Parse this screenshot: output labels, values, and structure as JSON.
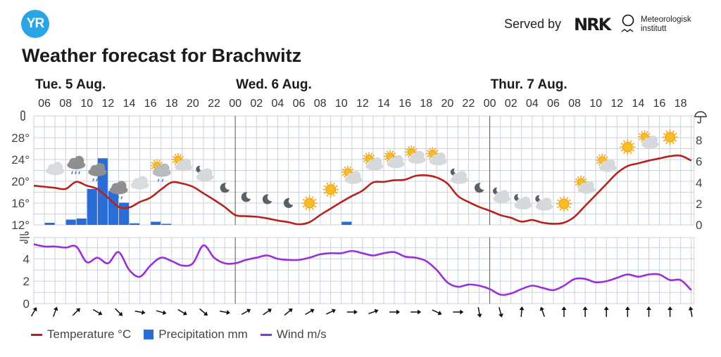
{
  "header": {
    "logo_text": "YR",
    "served_by": "Served by",
    "nrk_logo": "NRK",
    "met_line1": "Meteorologisk",
    "met_line2": "institutt",
    "title": "Weather forecast for Brachwitz"
  },
  "days": [
    {
      "label": "Tue. 5 Aug.",
      "start_hour": 5
    },
    {
      "label": "Wed. 6 Aug.",
      "start_hour": 24
    },
    {
      "label": "Thur. 7 Aug.",
      "start_hour": 48
    }
  ],
  "hour_labels": [
    "06",
    "08",
    "10",
    "12",
    "14",
    "16",
    "18",
    "20",
    "22",
    "00",
    "02",
    "04",
    "06",
    "08",
    "10",
    "12",
    "14",
    "16",
    "18",
    "20",
    "22",
    "00",
    "02",
    "04",
    "06",
    "08",
    "10",
    "12",
    "14",
    "16",
    "18"
  ],
  "legend": {
    "temperature": "Temperature °C",
    "precipitation": "Precipitation mm",
    "wind": "Wind m/s"
  },
  "colors": {
    "temperature": "#b5231c",
    "precipitation": "#2a6dd6",
    "wind": "#9b2fd6",
    "grid": "#c9d2dc",
    "midnight": "#555555",
    "brand": "#29a4e6"
  },
  "chart_data": {
    "type": "line",
    "x_unit": "hours since Tue 00:00",
    "x_range": [
      5,
      67
    ],
    "temperature": {
      "axis_labels": [
        "12°",
        "16°",
        "20°",
        "24°",
        "28°"
      ],
      "ylim": [
        12,
        32
      ],
      "values": [
        19.2,
        19.0,
        18.8,
        18.6,
        19.9,
        19.2,
        18.6,
        17.0,
        15.3,
        15.2,
        16.2,
        17.0,
        18.5,
        19.8,
        19.6,
        19.0,
        17.8,
        16.6,
        15.3,
        13.8,
        13.6,
        13.5,
        13.2,
        12.8,
        12.5,
        12.1,
        12.5,
        13.8,
        15.0,
        16.2,
        17.3,
        18.3,
        19.8,
        19.9,
        20.2,
        20.3,
        21.0,
        21.1,
        20.7,
        19.6,
        17.3,
        16.2,
        15.3,
        14.6,
        13.8,
        13.3,
        12.6,
        12.9,
        12.4,
        12.2,
        12.4,
        13.5,
        15.5,
        17.5,
        19.5,
        21.5,
        22.8,
        23.3,
        23.8,
        24.2,
        24.6,
        24.7,
        23.8
      ]
    },
    "precipitation": {
      "axis_labels": [
        "0",
        "2",
        "4",
        "6",
        "8"
      ],
      "ylim": [
        0,
        10.3
      ],
      "bars": [
        {
          "hour": 6,
          "mm": 0.2
        },
        {
          "hour": 8,
          "mm": 0.5
        },
        {
          "hour": 9,
          "mm": 0.6
        },
        {
          "hour": 10,
          "mm": 3.4
        },
        {
          "hour": 11,
          "mm": 6.3
        },
        {
          "hour": 12,
          "mm": 3.2
        },
        {
          "hour": 13,
          "mm": 2.1
        },
        {
          "hour": 14,
          "mm": 0.15
        },
        {
          "hour": 16,
          "mm": 0.3
        },
        {
          "hour": 17,
          "mm": 0.1
        },
        {
          "hour": 34,
          "mm": 0.3
        }
      ]
    },
    "wind": {
      "axis_labels": [
        "0",
        "2",
        "4"
      ],
      "ylim": [
        0,
        5.9
      ],
      "values": [
        5.3,
        5.1,
        5.1,
        5.0,
        5.1,
        3.7,
        4.1,
        3.6,
        4.6,
        3.0,
        2.4,
        3.4,
        4.1,
        3.8,
        3.4,
        3.6,
        5.2,
        4.1,
        3.6,
        3.6,
        3.9,
        4.1,
        4.3,
        4.0,
        3.9,
        3.9,
        4.1,
        4.4,
        4.5,
        4.5,
        4.7,
        4.5,
        4.3,
        4.5,
        4.6,
        4.2,
        4.1,
        3.8,
        3.0,
        1.9,
        1.5,
        1.7,
        1.6,
        1.3,
        0.8,
        0.9,
        1.3,
        1.6,
        1.4,
        1.2,
        1.6,
        2.2,
        2.2,
        1.9,
        2.0,
        2.3,
        2.6,
        2.4,
        2.6,
        2.6,
        2.1,
        2.1,
        1.2
      ],
      "direction_deg_every_2h": [
        30,
        20,
        45,
        120,
        135,
        100,
        105,
        120,
        130,
        100,
        60,
        55,
        50,
        60,
        65,
        90,
        70,
        90,
        90,
        115,
        90,
        170,
        165,
        5,
        -20,
        0,
        0,
        0,
        0,
        0,
        0,
        -10
      ]
    },
    "symbols": [
      {
        "hour": 7,
        "icon": "cloud"
      },
      {
        "hour": 9,
        "icon": "rain-cloud"
      },
      {
        "hour": 11,
        "icon": "rain-cloud"
      },
      {
        "hour": 13,
        "icon": "rain-cloud"
      },
      {
        "hour": 15,
        "icon": "cloud"
      },
      {
        "hour": 17,
        "icon": "sun-rain-cloud"
      },
      {
        "hour": 19,
        "icon": "sun-cloud"
      },
      {
        "hour": 21,
        "icon": "moon-cloud"
      },
      {
        "hour": 23,
        "icon": "moon"
      },
      {
        "hour": 25,
        "icon": "moon"
      },
      {
        "hour": 27,
        "icon": "moon"
      },
      {
        "hour": 29,
        "icon": "moon"
      },
      {
        "hour": 31,
        "icon": "sun"
      },
      {
        "hour": 33,
        "icon": "sun"
      },
      {
        "hour": 35,
        "icon": "sun-cloud"
      },
      {
        "hour": 37,
        "icon": "sun-cloud"
      },
      {
        "hour": 39,
        "icon": "sun-cloud"
      },
      {
        "hour": 41,
        "icon": "sun-cloud"
      },
      {
        "hour": 43,
        "icon": "sun-cloud"
      },
      {
        "hour": 45,
        "icon": "moon-cloud"
      },
      {
        "hour": 47,
        "icon": "moon"
      },
      {
        "hour": 49,
        "icon": "moon-cloud"
      },
      {
        "hour": 51,
        "icon": "moon-cloud"
      },
      {
        "hour": 53,
        "icon": "moon-cloud"
      },
      {
        "hour": 55,
        "icon": "sun"
      },
      {
        "hour": 57,
        "icon": "sun-cloud"
      },
      {
        "hour": 59,
        "icon": "sun-cloud"
      },
      {
        "hour": 61,
        "icon": "sun"
      },
      {
        "hour": 63,
        "icon": "sun-cloud"
      },
      {
        "hour": 65,
        "icon": "sun"
      }
    ]
  }
}
